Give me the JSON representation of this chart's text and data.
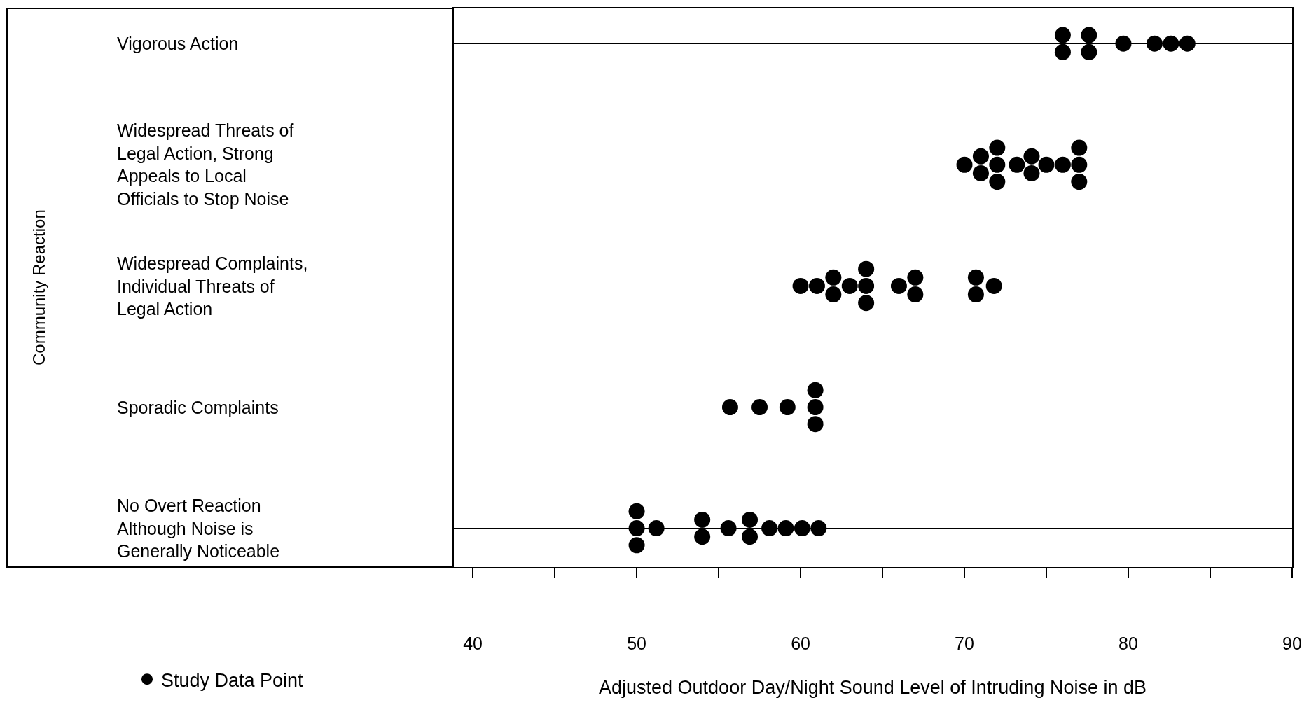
{
  "chart_data": {
    "type": "scatter",
    "orientation": "horizontal",
    "categories": [
      "Vigorous Action",
      "Widespread Threats of Legal Action, Strong Appeals to Local Officials to Stop Noise",
      "Widespread Complaints, Individual Threats of Legal Action",
      "Sporadic Complaints",
      "No Overt Reaction Although Noise is Generally Noticeable"
    ],
    "series": [
      {
        "name": "Study Data Point",
        "color": "#000000",
        "x": [
          "Vigorous Action",
          "Vigorous Action",
          "Vigorous Action",
          "Vigorous Action",
          "Vigorous Action",
          "Vigorous Action",
          "Vigorous Action",
          "Vigorous Action",
          "Widespread Threats of Legal Action, Strong Appeals to Local Officials to Stop Noise",
          "Widespread Threats of Legal Action, Strong Appeals to Local Officials to Stop Noise",
          "Widespread Threats of Legal Action, Strong Appeals to Local Officials to Stop Noise",
          "Widespread Threats of Legal Action, Strong Appeals to Local Officials to Stop Noise",
          "Widespread Threats of Legal Action, Strong Appeals to Local Officials to Stop Noise",
          "Widespread Threats of Legal Action, Strong Appeals to Local Officials to Stop Noise",
          "Widespread Threats of Legal Action, Strong Appeals to Local Officials to Stop Noise",
          "Widespread Threats of Legal Action, Strong Appeals to Local Officials to Stop Noise",
          "Widespread Threats of Legal Action, Strong Appeals to Local Officials to Stop Noise",
          "Widespread Threats of Legal Action, Strong Appeals to Local Officials to Stop Noise",
          "Widespread Threats of Legal Action, Strong Appeals to Local Officials to Stop Noise",
          "Widespread Threats of Legal Action, Strong Appeals to Local Officials to Stop Noise",
          "Widespread Threats of Legal Action, Strong Appeals to Local Officials to Stop Noise",
          "Widespread Threats of Legal Action, Strong Appeals to Local Officials to Stop Noise",
          "Widespread Complaints, Individual Threats of Legal Action",
          "Widespread Complaints, Individual Threats of Legal Action",
          "Widespread Complaints, Individual Threats of Legal Action",
          "Widespread Complaints, Individual Threats of Legal Action",
          "Widespread Complaints, Individual Threats of Legal Action",
          "Widespread Complaints, Individual Threats of Legal Action",
          "Widespread Complaints, Individual Threats of Legal Action",
          "Widespread Complaints, Individual Threats of Legal Action",
          "Widespread Complaints, Individual Threats of Legal Action",
          "Widespread Complaints, Individual Threats of Legal Action",
          "Widespread Complaints, Individual Threats of Legal Action",
          "Widespread Complaints, Individual Threats of Legal Action",
          "Widespread Complaints, Individual Threats of Legal Action",
          "Widespread Complaints, Individual Threats of Legal Action",
          "Sporadic Complaints",
          "Sporadic Complaints",
          "Sporadic Complaints",
          "Sporadic Complaints",
          "Sporadic Complaints",
          "Sporadic Complaints",
          "No Overt Reaction Although Noise is Generally Noticeable",
          "No Overt Reaction Although Noise is Generally Noticeable",
          "No Overt Reaction Although Noise is Generally Noticeable",
          "No Overt Reaction Although Noise is Generally Noticeable",
          "No Overt Reaction Although Noise is Generally Noticeable",
          "No Overt Reaction Although Noise is Generally Noticeable",
          "No Overt Reaction Although Noise is Generally Noticeable",
          "No Overt Reaction Although Noise is Generally Noticeable",
          "No Overt Reaction Although Noise is Generally Noticeable",
          "No Overt Reaction Although Noise is Generally Noticeable",
          "No Overt Reaction Although Noise is Generally Noticeable",
          "No Overt Reaction Although Noise is Generally Noticeable",
          "No Overt Reaction Although Noise is Generally Noticeable"
        ],
        "values": [
          76,
          76,
          77.6,
          77.6,
          79.7,
          81.6,
          82.6,
          83.6,
          70,
          71,
          71,
          72,
          72,
          72,
          73.2,
          74.1,
          74.1,
          75,
          76,
          77,
          77,
          77,
          60,
          61,
          62,
          62,
          63,
          64,
          64,
          64,
          66,
          67,
          67,
          70.7,
          70.7,
          71.8,
          55.7,
          57.5,
          59.2,
          60.9,
          60.9,
          60.9,
          50,
          50,
          50,
          51.2,
          54,
          54,
          55.6,
          56.9,
          56.9,
          58.1,
          59.1,
          60.1,
          61.1
        ]
      }
    ],
    "xlabel": "Adjusted Outdoor Day/Night Sound Level of Intruding Noise in dB",
    "ylabel": "Community Reaction",
    "xlim": [
      38.8,
      90
    ],
    "xticks": [
      40,
      {
        "value": 45,
        "label": null
      },
      50,
      {
        "value": 55,
        "label": null
      },
      60,
      {
        "value": 65,
        "label": null
      },
      70,
      {
        "value": 75,
        "label": null
      },
      80,
      {
        "value": 85,
        "label": null
      },
      90
    ],
    "grid": "y",
    "marker": "circle",
    "legend": "bottom left"
  }
}
